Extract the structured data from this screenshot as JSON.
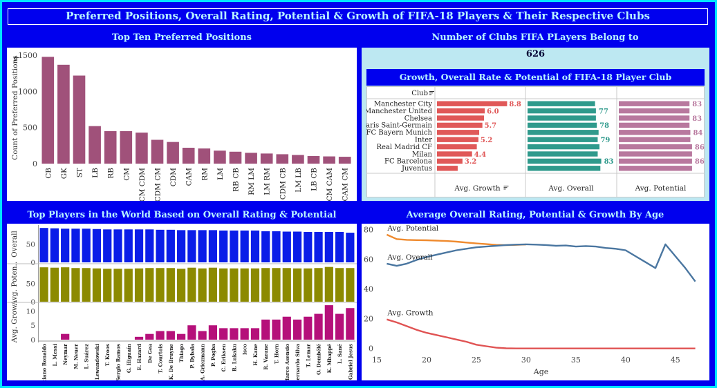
{
  "dashboard_title": "Preferred Positions, Overall Rating, Potential & Growth of FIFA-18 Players & Their Respective Clubs",
  "panels": {
    "positions_title": "Top Ten Preferred Positions",
    "clubs_count_title": "Number of Clubs FIFA PLayers Belong to",
    "clubs_count_value": "626",
    "club_chart_title": "Growth, Overall Rate & Potential of FIFA-18 Player Club",
    "players_title": "Top Players in the World Based on Overall Rating & Potential",
    "age_title": "Average Overall Rating, Potential & Growth By Age"
  },
  "icons": {
    "sort": "sort-icon"
  },
  "colors": {
    "background": "#0000ee",
    "border": "#00e5ff",
    "title_text": "#b8f4ff",
    "position_bar": "#a0517a",
    "growth_bar": "#e05858",
    "overall_bar": "#2f9a8c",
    "potential_bar": "#b8789e",
    "player_overall": "#0a1de8",
    "player_potential": "#8c8a00",
    "player_growth": "#b5107a",
    "line_potential": "#ef8a2e",
    "line_overall": "#4a76a0",
    "line_growth": "#e05353",
    "count_panel_bg": "#bde8f2"
  },
  "chart_data": [
    {
      "type": "bar",
      "ylabel": "Count of Preferred Positions",
      "categories": [
        "CB",
        "GK",
        "ST",
        "LB",
        "RB",
        "CM",
        "CM CDM",
        "CDM CM",
        "CDM",
        "CAM",
        "RM",
        "LM",
        "RB CB",
        "RM LM",
        "LM RM",
        "CDM CB",
        "LM LB",
        "LB CB",
        "CM CAM",
        "CAM CM"
      ],
      "values": [
        1480,
        1370,
        1220,
        520,
        450,
        450,
        430,
        330,
        300,
        220,
        210,
        180,
        165,
        150,
        140,
        130,
        120,
        105,
        100,
        95
      ],
      "ylim": [
        0,
        1550
      ],
      "yticks": [
        0,
        500,
        1000,
        1500
      ],
      "grid": false
    },
    {
      "type": "table",
      "row_header": "Club",
      "columns": [
        "Avg. Growth",
        "Avg. Overall",
        "Avg. Potential"
      ],
      "clubs": [
        "Manchester City",
        "Manchester United",
        "Chelsea",
        "Paris Saint-Germain",
        "FC Bayern Munich",
        "Inter",
        "Real Madrid CF",
        "Milan",
        "FC Barcelona",
        "Juventus"
      ],
      "growth": [
        8.8,
        6.0,
        5.9,
        5.7,
        5.3,
        5.2,
        5.0,
        4.4,
        3.2,
        2.6
      ],
      "growth_labels": [
        "8.8",
        "6.0",
        "",
        "5.7",
        "",
        "5.2",
        "",
        "4.4",
        "3.2",
        ""
      ],
      "overall": [
        76,
        77,
        77,
        78,
        80,
        79,
        81,
        79,
        83,
        82
      ],
      "overall_labels": [
        "",
        "77",
        "",
        "78",
        "",
        "79",
        "",
        "",
        "83",
        ""
      ],
      "potential": [
        83,
        83,
        83,
        83,
        84,
        84,
        86,
        86,
        86,
        86
      ],
      "potential_labels": [
        "83",
        "",
        "83",
        "",
        "84",
        "",
        "86",
        "",
        "86",
        ""
      ],
      "overall_xlim": [
        0,
        95
      ],
      "potential_xlim": [
        0,
        95
      ],
      "growth_xlim": [
        0,
        10.5
      ]
    },
    {
      "type": "bar",
      "players": [
        "Cristiano Ronaldo",
        "L. Messi",
        "Neymar",
        "M. Neuer",
        "L. Suárez",
        "R. Lewandowski",
        "T. Kroos",
        "Sergio Ramos",
        "G. Higuaín",
        "E. Hazard",
        "De Gea",
        "T. Courtois",
        "K. De Bruyne",
        "Thiago",
        "P. Dybala",
        "A. Griezmann",
        "P. Pogba",
        "C. Eriksen",
        "R. Lukaku",
        "Isco",
        "H. Kane",
        "R. Varane",
        "T. Horn",
        "Marco Asensio",
        "Bernardo Silva",
        "T. Lemar",
        "O. Dembélé",
        "K. Mbappé",
        "L. Sané",
        "Gabriel Jesus"
      ],
      "series": [
        {
          "name": "Overall",
          "values": [
            94,
            93,
            92,
            92,
            92,
            91,
            90,
            90,
            90,
            90,
            90,
            89,
            89,
            88,
            88,
            88,
            88,
            87,
            87,
            87,
            87,
            85,
            85,
            84,
            84,
            83,
            83,
            83,
            83,
            81
          ]
        },
        {
          "name": "Avg. Potential",
          "values": [
            94,
            93,
            94,
            92,
            92,
            91,
            90,
            90,
            90,
            91,
            92,
            92,
            92,
            90,
            93,
            91,
            93,
            91,
            91,
            91,
            91,
            92,
            92,
            92,
            91,
            91,
            92,
            95,
            92,
            92
          ]
        },
        {
          "name": "Avg. Growth",
          "values": [
            0,
            0,
            2,
            0,
            0,
            0,
            0,
            0,
            0,
            1,
            2,
            3,
            3,
            2,
            5,
            3,
            5,
            4,
            4,
            4,
            4,
            7,
            7,
            8,
            7,
            8,
            9,
            12,
            9,
            11
          ]
        }
      ],
      "row_labels": [
        "Overall",
        "Avg. Poten..",
        "Avg. Grow.."
      ],
      "yticks_rating": [
        0,
        50
      ],
      "yticks_growth": [
        0,
        5,
        10
      ],
      "ylim_rating": [
        0,
        100
      ],
      "ylim_growth": [
        0,
        12.5
      ]
    },
    {
      "type": "line",
      "xlabel": "Age",
      "x": [
        16,
        17,
        18,
        19,
        20,
        21,
        22,
        23,
        24,
        25,
        26,
        27,
        28,
        29,
        30,
        31,
        32,
        33,
        34,
        35,
        36,
        37,
        38,
        39,
        40,
        41,
        42,
        43,
        44,
        45,
        46,
        47
      ],
      "series": [
        {
          "name": "Avg. Potential",
          "values": [
            76.5,
            73.5,
            73,
            72.8,
            72.7,
            72.5,
            72.2,
            71.8,
            71.2,
            70.6,
            70.1,
            69.6,
            69.4,
            69.6,
            69.9,
            null,
            null,
            null,
            null,
            null,
            null,
            null,
            null,
            null,
            null,
            null,
            null,
            null,
            null,
            null,
            null,
            null
          ]
        },
        {
          "name": "Avg. Overall",
          "values": [
            57,
            55.5,
            57,
            59.5,
            61.5,
            63,
            64.5,
            66,
            67,
            68,
            68.5,
            69,
            69.5,
            69.8,
            70,
            69.8,
            69.5,
            69,
            69.2,
            68.5,
            68.8,
            68.5,
            67.5,
            67,
            66,
            62,
            58,
            54,
            70,
            62,
            54,
            45
          ]
        },
        {
          "name": "Avg. Growth",
          "values": [
            19.5,
            17.5,
            15,
            12.5,
            10.5,
            9,
            7.5,
            6,
            4.5,
            2.5,
            1.5,
            0.5,
            0.1,
            0,
            0,
            0,
            0,
            0,
            0,
            0,
            0,
            0,
            0,
            0,
            0,
            0,
            0,
            0,
            0,
            0,
            0,
            0
          ]
        }
      ],
      "xlim": [
        15,
        48
      ],
      "ylim": [
        -2,
        82
      ],
      "xticks": [
        15,
        20,
        25,
        30,
        35,
        40,
        45
      ],
      "yticks": [
        0,
        20,
        40,
        60,
        80
      ]
    }
  ]
}
